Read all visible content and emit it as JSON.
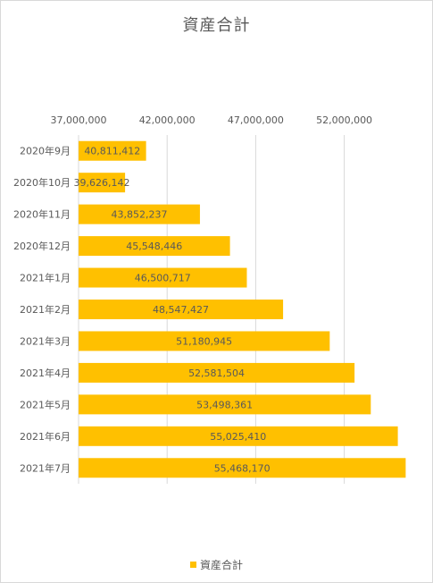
{
  "chart_data": {
    "type": "bar",
    "orientation": "horizontal",
    "title": "資産合計",
    "categories": [
      "2020年9月",
      "2020年10月",
      "2020年11月",
      "2020年12月",
      "2021年1月",
      "2021年2月",
      "2021年3月",
      "2021年4月",
      "2021年5月",
      "2021年6月",
      "2021年7月"
    ],
    "series": [
      {
        "name": "資産合計",
        "values": [
          40811412,
          39626142,
          43852237,
          45548446,
          46500717,
          48547427,
          51180945,
          52581504,
          53498361,
          55025410,
          55468170
        ],
        "value_labels": [
          "40,811,412",
          "39,626,142",
          "43,852,237",
          "45,548,446",
          "46,500,717",
          "48,547,427",
          "51,180,945",
          "52,581,504",
          "53,498,361",
          "55,025,410",
          "55,468,170"
        ]
      }
    ],
    "xlim": [
      37000000,
      55600000
    ],
    "x_ticks": [
      37000000,
      42000000,
      47000000,
      52000000
    ],
    "x_tick_labels": [
      "37,000,000",
      "42,000,000",
      "47,000,000",
      "52,000,000"
    ],
    "axis_position": "top",
    "grid": true,
    "legend_position": "bottom",
    "bar_color": "#FFC000",
    "gridline_color": "#d9d9d9",
    "text_color": "#595959"
  }
}
